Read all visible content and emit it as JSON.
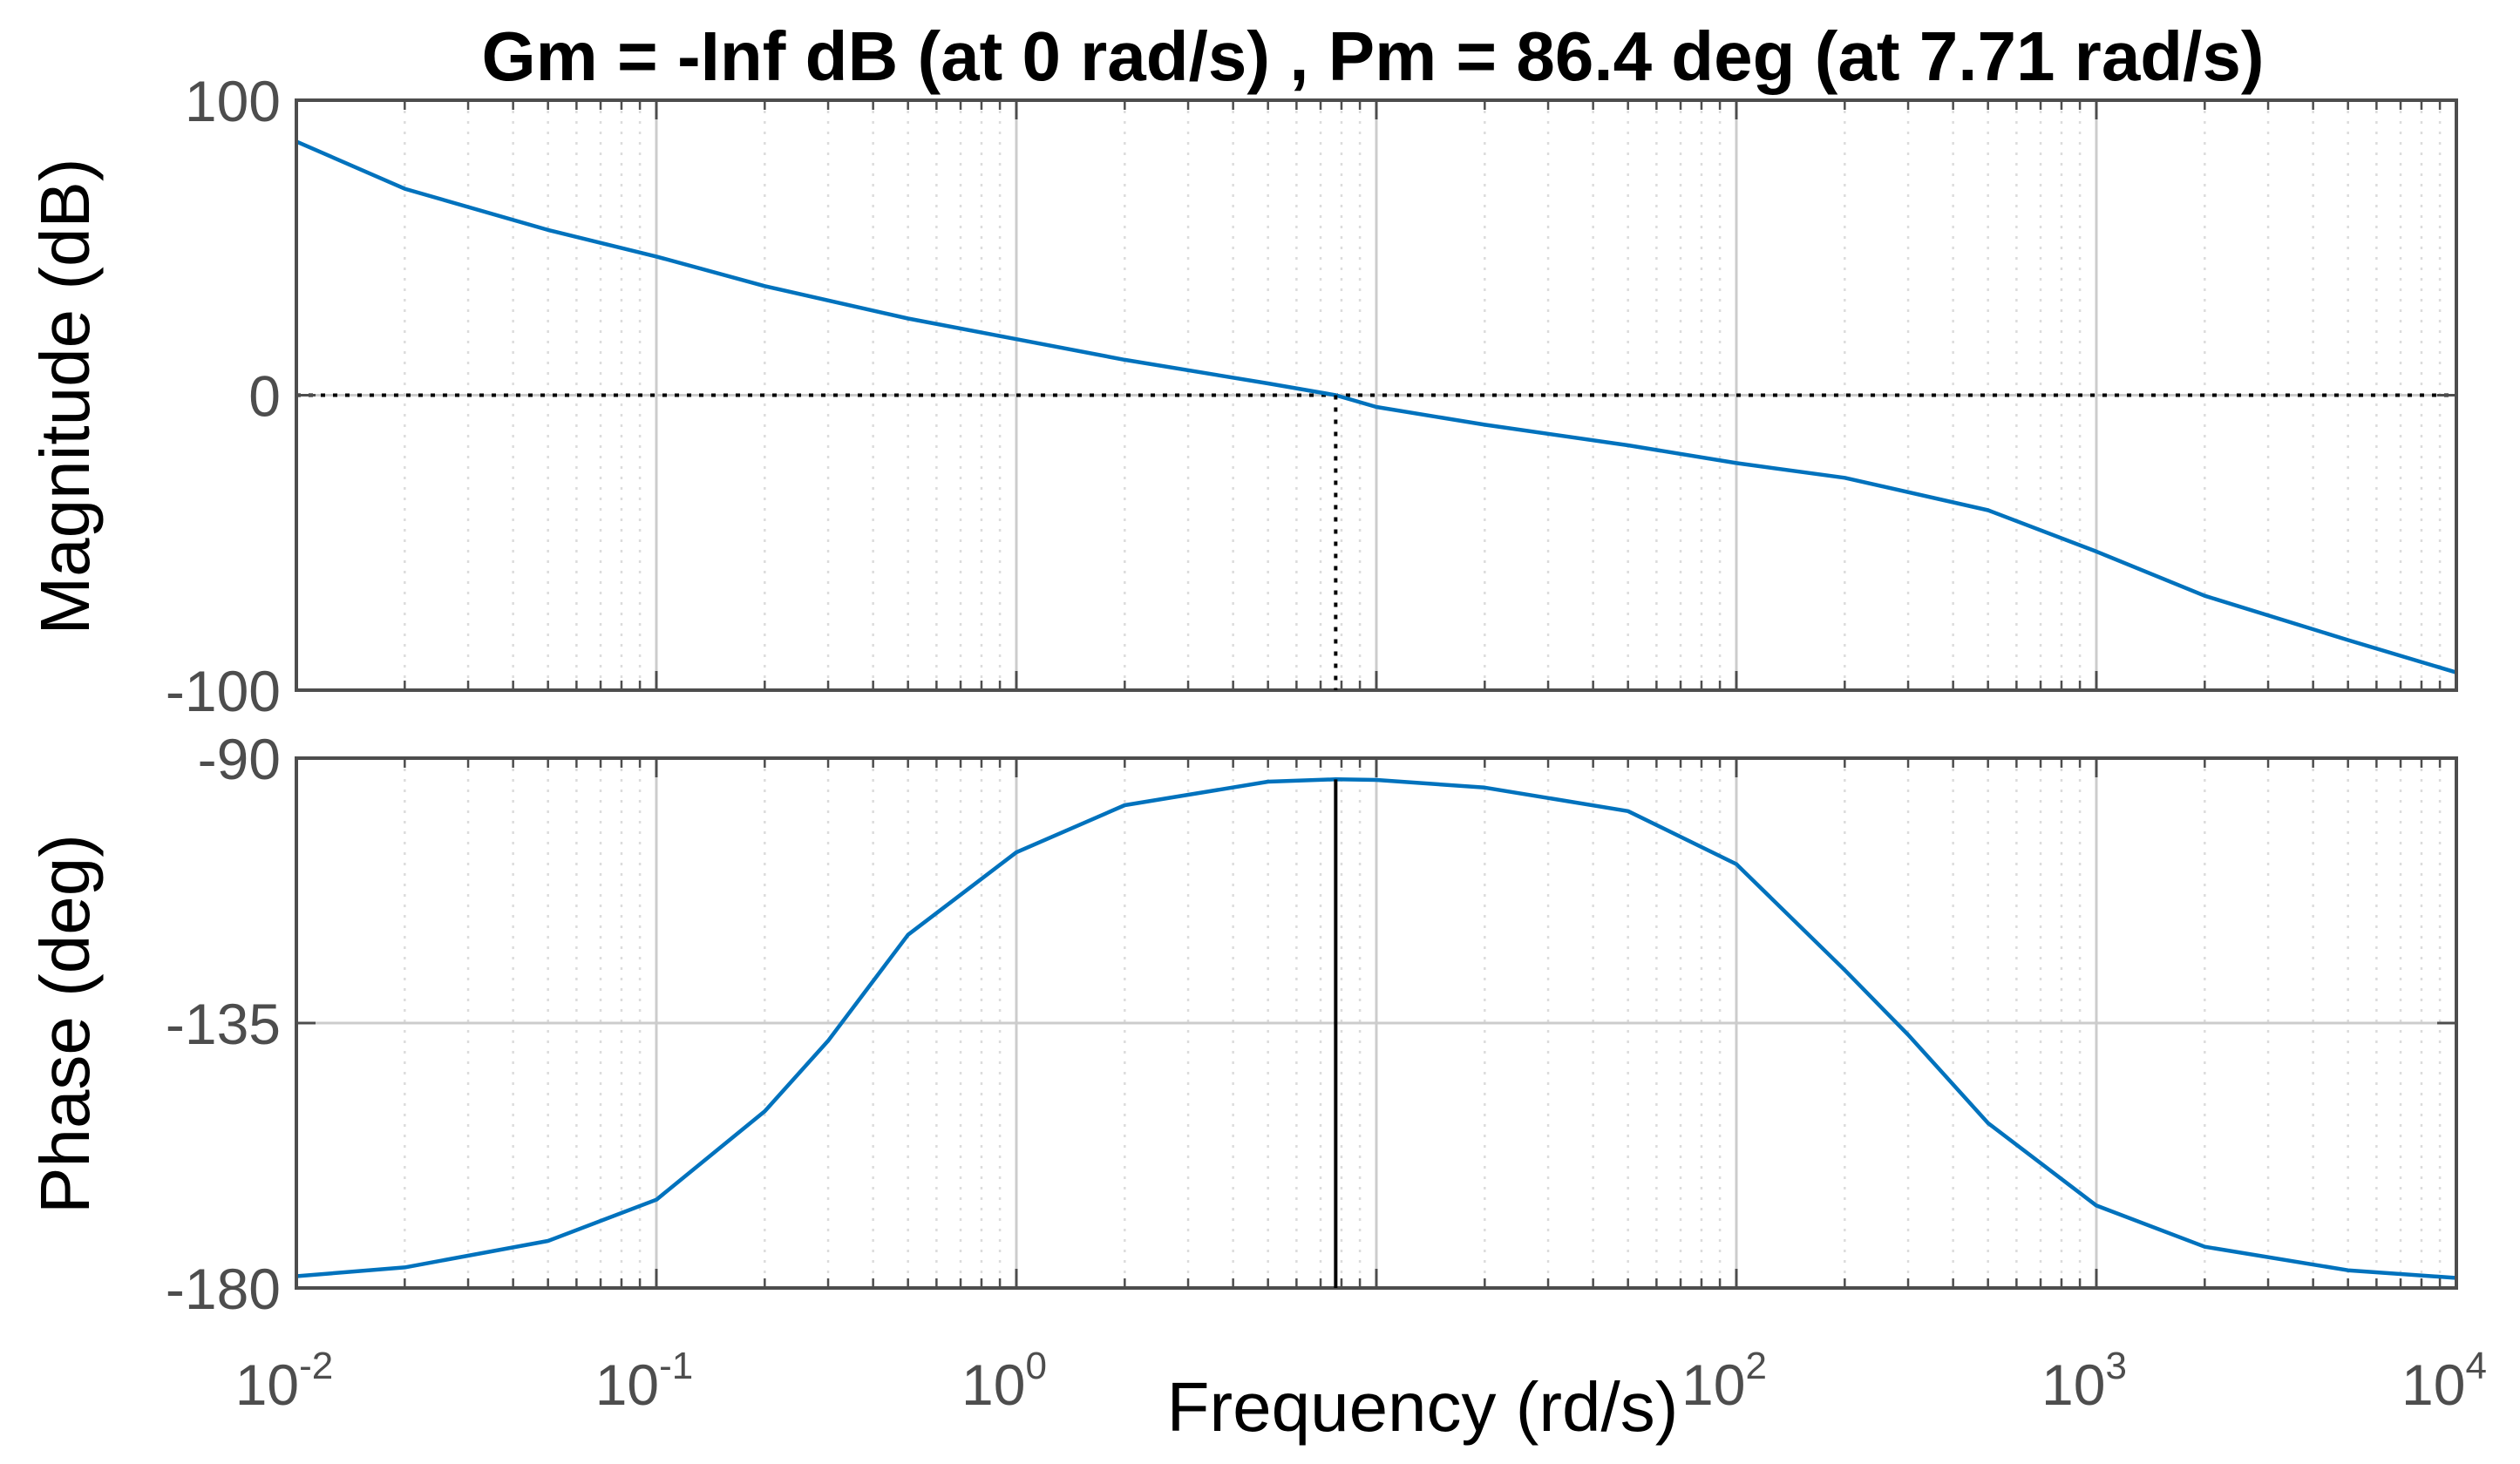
{
  "colors": {
    "series": "#0072BD",
    "axis": "#4d4d4d",
    "grid_major": "#cccccc",
    "grid_minor": "#dcdcdc",
    "marker": "#000000",
    "background": "#ffffff"
  },
  "chart_data": [
    {
      "type": "line",
      "subplot": "magnitude",
      "title": "Gm = -Inf dB (at 0 rad/s) ,  Pm = 86.4 deg (at 7.71 rad/s)",
      "ylabel": "Magnitude (dB)",
      "xscale": "log",
      "xlim": [
        0.01,
        10000
      ],
      "ylim": [
        -100,
        100
      ],
      "yticks": [
        100,
        0,
        -100
      ],
      "ytick_labels": [
        "100",
        "0",
        "-100"
      ],
      "grid": true,
      "reference_line_y": 0,
      "crossover_frequency": 7.71,
      "series": [
        {
          "x": [
            0.01,
            0.02,
            0.05,
            0.1,
            0.2,
            0.5,
            1,
            2,
            5,
            7.71,
            10,
            20,
            50,
            100,
            200,
            500,
            1000,
            2000,
            5000,
            10000
          ],
          "y": [
            86,
            70,
            56,
            47,
            37,
            26,
            19,
            12,
            4,
            0,
            -4,
            -10,
            -17,
            -23,
            -28,
            -39,
            -53,
            -68,
            -83,
            -94
          ]
        }
      ]
    },
    {
      "type": "line",
      "subplot": "phase",
      "xlabel": "Frequency (rd/s)",
      "ylabel": "Phase (deg)",
      "xscale": "log",
      "xlim": [
        0.01,
        10000
      ],
      "ylim": [
        -180,
        -90
      ],
      "yticks": [
        -90,
        -135,
        -180
      ],
      "ytick_labels": [
        "-90",
        "-135",
        "-180"
      ],
      "xtick_mantissa": [
        "10",
        "10",
        "10",
        "10",
        "10",
        "10",
        "10"
      ],
      "xtick_exponents": [
        "-2",
        "-1",
        "0",
        "",
        "2",
        "3",
        "4"
      ],
      "grid": true,
      "reference_line_y": -180,
      "phase_margin": 86.4,
      "crossover_frequency": 7.71,
      "series": [
        {
          "x": [
            0.01,
            0.02,
            0.05,
            0.1,
            0.2,
            0.3,
            0.5,
            1,
            2,
            5,
            7.71,
            10,
            20,
            50,
            100,
            200,
            300,
            500,
            1000,
            2000,
            5000,
            10000
          ],
          "y": [
            -178,
            -176.5,
            -172,
            -165,
            -150,
            -138,
            -120,
            -106,
            -98,
            -94,
            -93.6,
            -93.7,
            -95,
            -99,
            -108,
            -126,
            -137,
            -152,
            -166,
            -173,
            -177,
            -178.3
          ]
        }
      ]
    }
  ]
}
